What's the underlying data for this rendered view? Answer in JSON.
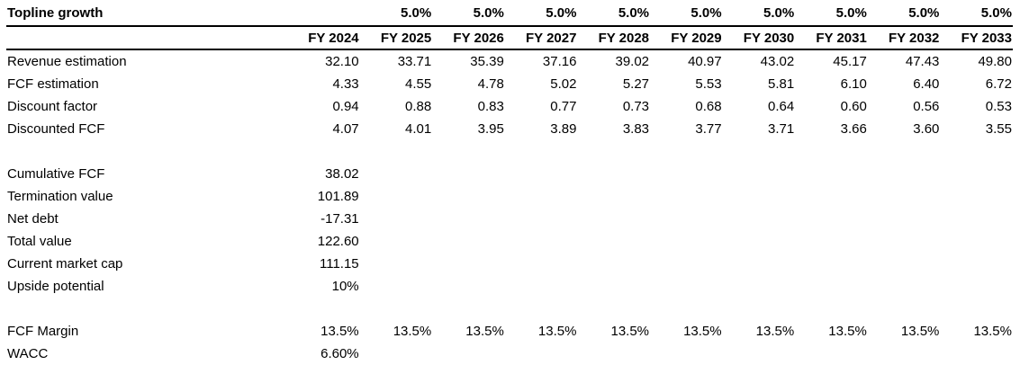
{
  "table": {
    "background_color": "#ffffff",
    "text_color": "#000000",
    "border_color": "#000000",
    "topline_row": {
      "label": "Topline growth",
      "values": [
        "",
        "5.0%",
        "5.0%",
        "5.0%",
        "5.0%",
        "5.0%",
        "5.0%",
        "5.0%",
        "5.0%",
        "5.0%"
      ]
    },
    "columns": [
      "FY 2024",
      "FY 2025",
      "FY 2026",
      "FY 2027",
      "FY 2028",
      "FY 2029",
      "FY 2030",
      "FY 2031",
      "FY 2032",
      "FY 2033"
    ],
    "rows": [
      {
        "label": "Revenue estimation",
        "values": [
          "32.10",
          "33.71",
          "35.39",
          "37.16",
          "39.02",
          "40.97",
          "43.02",
          "45.17",
          "47.43",
          "49.80"
        ]
      },
      {
        "label": "FCF estimation",
        "values": [
          "4.33",
          "4.55",
          "4.78",
          "5.02",
          "5.27",
          "5.53",
          "5.81",
          "6.10",
          "6.40",
          "6.72"
        ]
      },
      {
        "label": "Discount factor",
        "values": [
          "0.94",
          "0.88",
          "0.83",
          "0.77",
          "0.73",
          "0.68",
          "0.64",
          "0.60",
          "0.56",
          "0.53"
        ]
      },
      {
        "label": "Discounted FCF",
        "values": [
          "4.07",
          "4.01",
          "3.95",
          "3.89",
          "3.83",
          "3.77",
          "3.71",
          "3.66",
          "3.60",
          "3.55"
        ]
      },
      {
        "type": "spacer"
      },
      {
        "label": "Cumulative FCF",
        "values": [
          "38.02"
        ]
      },
      {
        "label": "Termination value",
        "values": [
          "101.89"
        ]
      },
      {
        "label": "Net debt",
        "values": [
          "-17.31"
        ]
      },
      {
        "label": "Total value",
        "values": [
          "122.60"
        ]
      },
      {
        "label": "Current market cap",
        "values": [
          "111.15"
        ]
      },
      {
        "label": "Upside potential",
        "values": [
          "10%"
        ]
      },
      {
        "type": "spacer"
      },
      {
        "label": "FCF Margin",
        "values": [
          "13.5%",
          "13.5%",
          "13.5%",
          "13.5%",
          "13.5%",
          "13.5%",
          "13.5%",
          "13.5%",
          "13.5%",
          "13.5%"
        ]
      },
      {
        "label": "WACC",
        "values": [
          "6.60%"
        ]
      }
    ]
  }
}
